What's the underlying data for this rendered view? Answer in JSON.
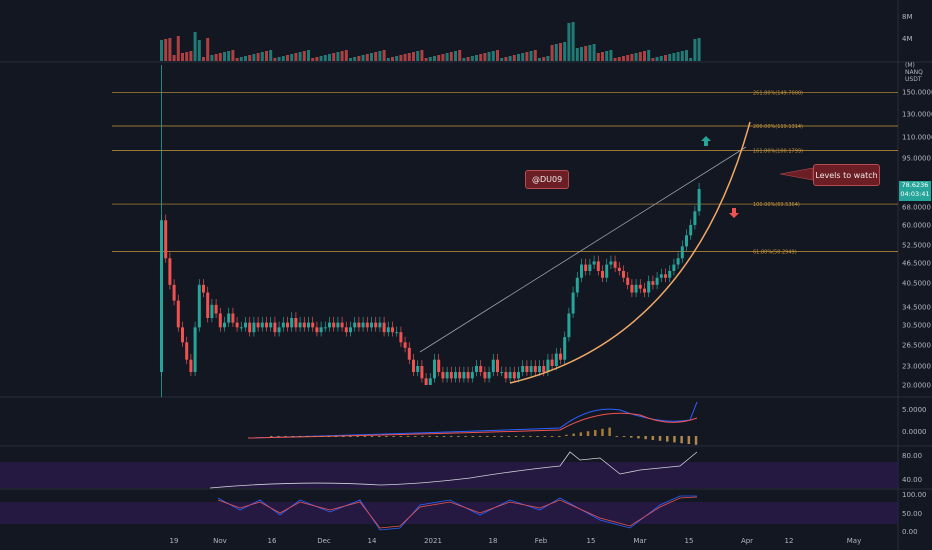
{
  "chart_data": {
    "type": "candlestick",
    "unit": "USDT",
    "ylabels": [
      "150.0000",
      "130.0000",
      "110.0000",
      "95.0000",
      "78.6236",
      "68.0000",
      "60.0000",
      "52.5000",
      "46.5000",
      "40.5000",
      "34.5000",
      "30.5000",
      "26.5000",
      "23.0000",
      "20.0000"
    ],
    "xlabels": [
      "19",
      "Nov",
      "16",
      "Dec",
      "14",
      "2021",
      "18",
      "Feb",
      "15",
      "Mar",
      "15",
      "Apr",
      "12",
      "May"
    ],
    "volume_labels": [
      "8M",
      "4M"
    ],
    "volume_unit": "(M) NANQ",
    "macd_labels": [
      "5.0000",
      "0.0000"
    ],
    "rsi_labels": [
      "80.00",
      "40.00"
    ],
    "stoch_labels": [
      "100.00",
      "50.00",
      "0.00"
    ],
    "last_price": "78.6236",
    "countdown": "04:03:41",
    "fib_levels": [
      {
        "label": "261.80%(149.7000)",
        "price": 149.7
      },
      {
        "label": "200.00%(119.1314)",
        "price": 119.1314
      },
      {
        "label": "161.80%(100.1799)",
        "price": 100.1799
      },
      {
        "label": "100.00%(69.5364)",
        "price": 69.5364
      },
      {
        "label": "61.80%(50.2949)",
        "price": 50.2949
      }
    ],
    "watermark_text": "@DU09",
    "callout_text": "Levels to watch",
    "colors": {
      "up": "#26a69a",
      "down": "#ef5350",
      "fib": "#c8963a",
      "curve": "#f0a868",
      "trend": "#9aa0aa",
      "rsi_band": "#2a1a4a"
    }
  }
}
